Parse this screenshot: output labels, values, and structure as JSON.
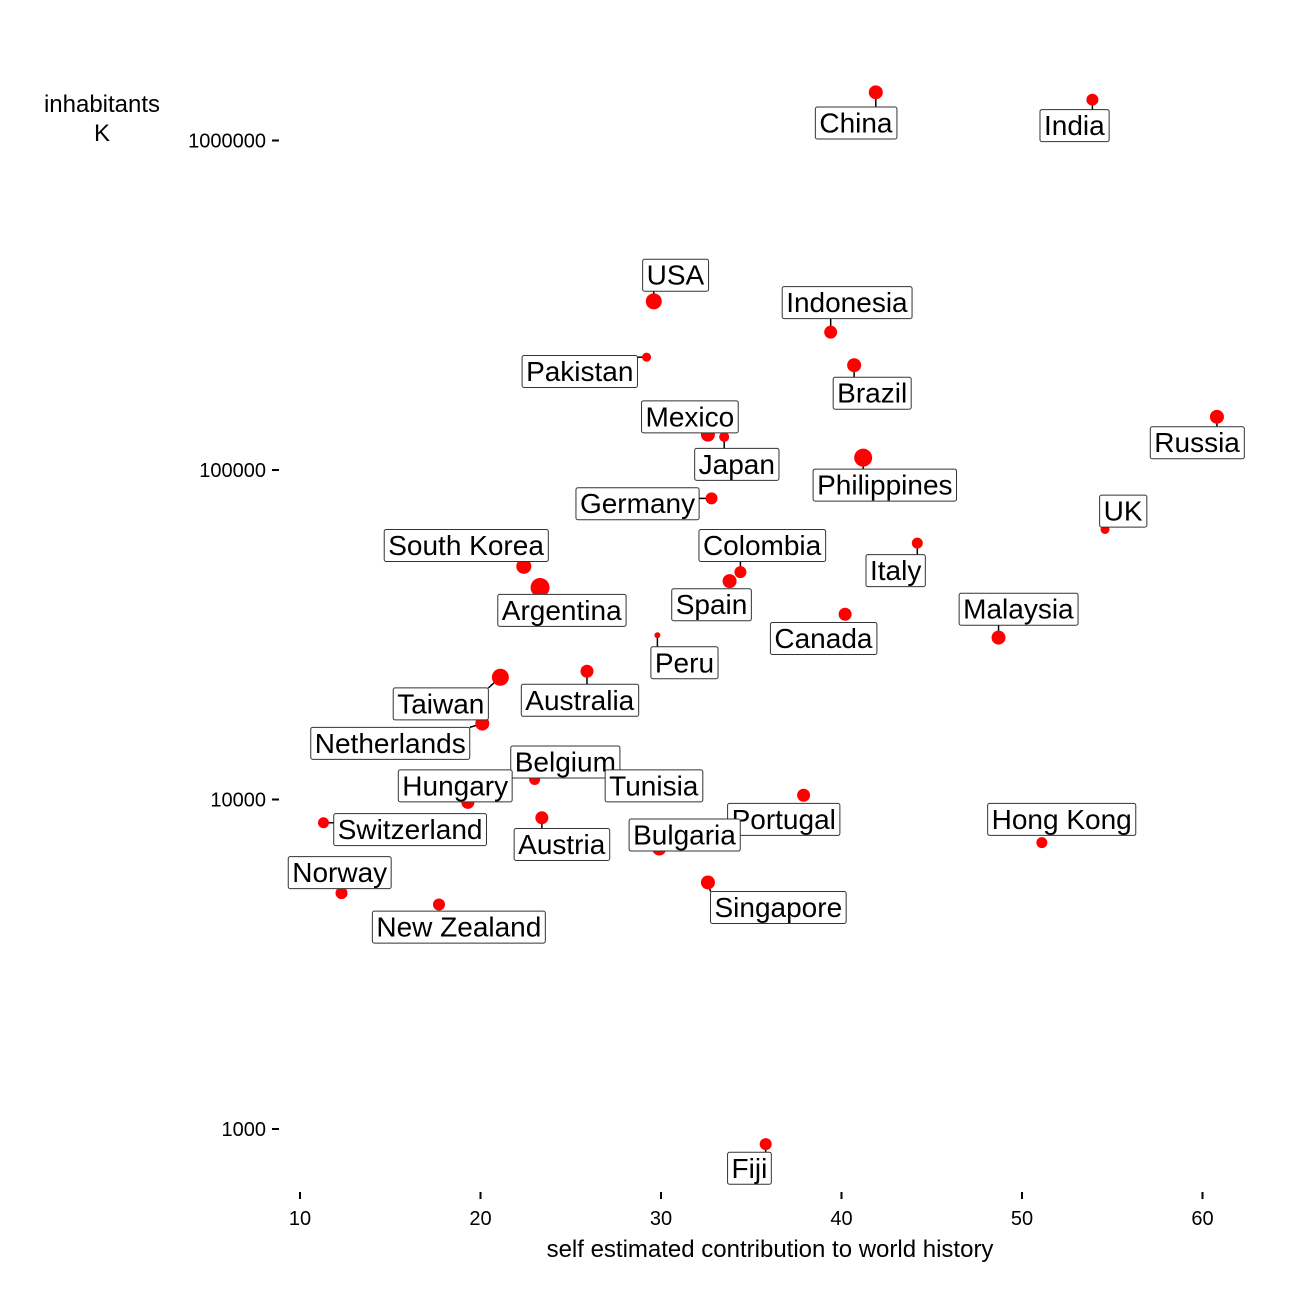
{
  "chart_data": {
    "type": "scatter",
    "xlabel": "self estimated contribution to world history",
    "ylabel": [
      "inhabitants",
      "K"
    ],
    "xlim": [
      9,
      63
    ],
    "ylim": [
      650,
      1600000
    ],
    "y_scale": "log10",
    "x_ticks": [
      10,
      20,
      30,
      40,
      50,
      60
    ],
    "y_ticks": [
      1000,
      10000,
      100000,
      1000000
    ],
    "grid": false,
    "legend": "none",
    "point_color": "#ff0000",
    "points": [
      {
        "label": "China",
        "x": 41.9,
        "y": 1400000,
        "size": 7,
        "lx": 40.8,
        "ly": 1130000
      },
      {
        "label": "India",
        "x": 53.9,
        "y": 1330000,
        "size": 6,
        "lx": 52.9,
        "ly": 1110000
      },
      {
        "label": "USA",
        "x": 29.6,
        "y": 325000,
        "size": 8,
        "lx": 30.8,
        "ly": 390000
      },
      {
        "label": "Indonesia",
        "x": 39.4,
        "y": 262000,
        "size": 6.5,
        "lx": 40.3,
        "ly": 322000
      },
      {
        "label": "Pakistan",
        "x": 29.2,
        "y": 220000,
        "size": 4.5,
        "lx": 25.5,
        "ly": 199000
      },
      {
        "label": "Brazil",
        "x": 40.7,
        "y": 208000,
        "size": 7,
        "lx": 41.7,
        "ly": 171000
      },
      {
        "label": "Russia",
        "x": 60.8,
        "y": 145000,
        "size": 7,
        "lx": 59.7,
        "ly": 121000
      },
      {
        "label": "Mexico",
        "x": 32.6,
        "y": 128000,
        "size": 7,
        "lx": 31.6,
        "ly": 145000
      },
      {
        "label": "Japan",
        "x": 33.5,
        "y": 126000,
        "size": 5,
        "lx": 34.2,
        "ly": 104000
      },
      {
        "label": "Philippines",
        "x": 41.2,
        "y": 109000,
        "size": 9,
        "lx": 42.4,
        "ly": 90000
      },
      {
        "label": "Germany",
        "x": 32.8,
        "y": 82000,
        "size": 6,
        "lx": 28.7,
        "ly": 79000
      },
      {
        "label": "UK",
        "x": 54.6,
        "y": 66000,
        "size": 4.5,
        "lx": 55.6,
        "ly": 75000
      },
      {
        "label": "Italy",
        "x": 44.2,
        "y": 60000,
        "size": 5.5,
        "lx": 43.0,
        "ly": 49500
      },
      {
        "label": "Colombia",
        "x": 34.4,
        "y": 49000,
        "size": 6,
        "lx": 35.6,
        "ly": 59000
      },
      {
        "label": "South Korea",
        "x": 22.4,
        "y": 51000,
        "size": 7.5,
        "lx": 19.2,
        "ly": 59000
      },
      {
        "label": "Spain",
        "x": 33.8,
        "y": 46000,
        "size": 7,
        "lx": 32.8,
        "ly": 39000
      },
      {
        "label": "Argentina",
        "x": 23.3,
        "y": 44000,
        "size": 9.5,
        "lx": 24.5,
        "ly": 37500
      },
      {
        "label": "Canada",
        "x": 40.2,
        "y": 36500,
        "size": 6.5,
        "lx": 39.0,
        "ly": 30800
      },
      {
        "label": "Malaysia",
        "x": 48.7,
        "y": 31000,
        "size": 7,
        "lx": 49.8,
        "ly": 37800
      },
      {
        "label": "Peru",
        "x": 29.8,
        "y": 31500,
        "size": 3,
        "lx": 31.3,
        "ly": 26000
      },
      {
        "label": "Australia",
        "x": 25.9,
        "y": 24500,
        "size": 6.5,
        "lx": 25.5,
        "ly": 20000
      },
      {
        "label": "Taiwan",
        "x": 21.1,
        "y": 23500,
        "size": 8.5,
        "lx": 17.8,
        "ly": 19500
      },
      {
        "label": "Netherlands",
        "x": 20.1,
        "y": 17000,
        "size": 7,
        "lx": 15.0,
        "ly": 14800
      },
      {
        "label": "Belgium",
        "x": 23.0,
        "y": 11500,
        "size": 5.5,
        "lx": 24.7,
        "ly": 13000
      },
      {
        "label": "Tunisia",
        "x": 28.5,
        "y": 11700,
        "size": 5,
        "lx": 29.6,
        "ly": 11000
      },
      {
        "label": "Hungary",
        "x": 19.3,
        "y": 9800,
        "size": 6.5,
        "lx": 18.6,
        "ly": 11000
      },
      {
        "label": "Portugal",
        "x": 37.9,
        "y": 10300,
        "size": 6.5,
        "lx": 36.8,
        "ly": 8700
      },
      {
        "label": "Switzerland",
        "x": 11.3,
        "y": 8500,
        "size": 5.5,
        "lx": 16.1,
        "ly": 8100
      },
      {
        "label": "Austria",
        "x": 23.4,
        "y": 8800,
        "size": 6.5,
        "lx": 24.5,
        "ly": 7300
      },
      {
        "label": "Bulgaria",
        "x": 29.9,
        "y": 7100,
        "size": 7,
        "lx": 31.3,
        "ly": 7800
      },
      {
        "label": "Hong Kong",
        "x": 51.1,
        "y": 7400,
        "size": 5.5,
        "lx": 52.2,
        "ly": 8700
      },
      {
        "label": "Norway",
        "x": 12.3,
        "y": 5200,
        "size": 6,
        "lx": 12.2,
        "ly": 6000
      },
      {
        "label": "Singapore",
        "x": 32.6,
        "y": 5600,
        "size": 7,
        "lx": 36.5,
        "ly": 4700
      },
      {
        "label": "New Zealand",
        "x": 17.7,
        "y": 4800,
        "size": 6,
        "lx": 18.8,
        "ly": 4100
      },
      {
        "label": "Fiji",
        "x": 35.8,
        "y": 900,
        "size": 6,
        "lx": 34.9,
        "ly": 760
      }
    ]
  }
}
